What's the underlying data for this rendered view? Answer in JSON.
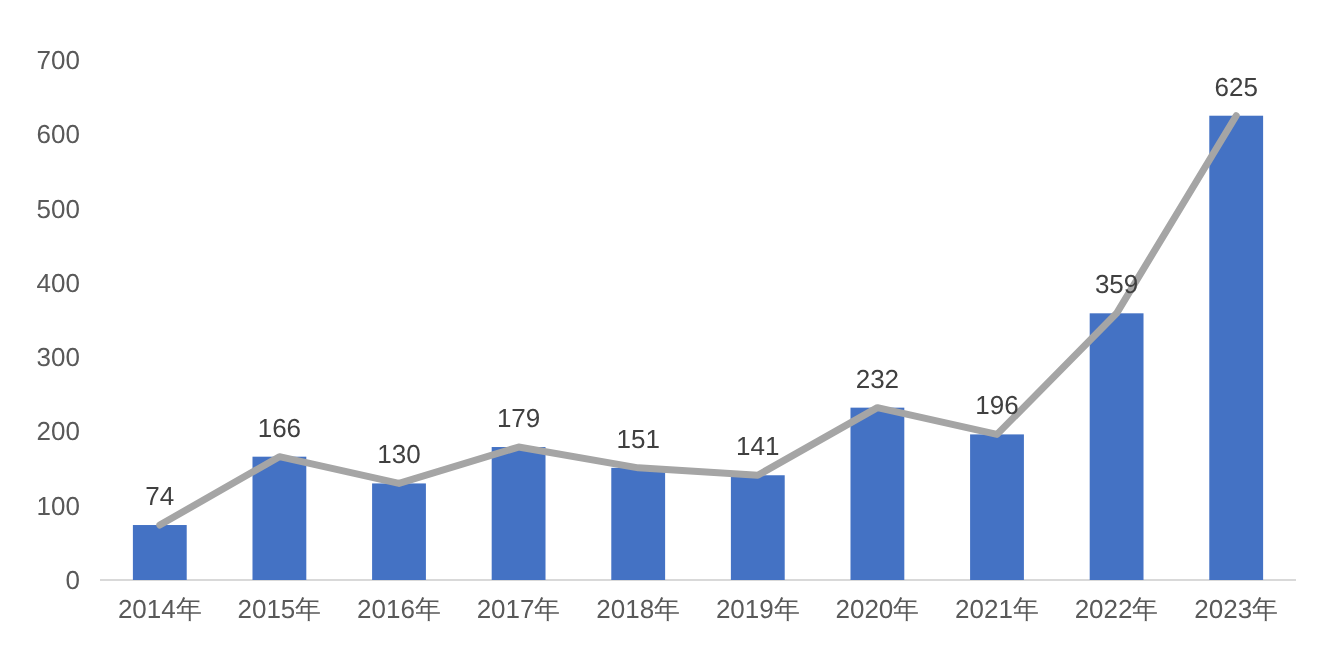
{
  "chart_data": {
    "type": "bar",
    "categories": [
      "2014年",
      "2015年",
      "2016年",
      "2017年",
      "2018年",
      "2019年",
      "2020年",
      "2021年",
      "2022年",
      "2023年"
    ],
    "series": [
      {
        "color": "#4472c4",
        "values": [
          74,
          166,
          130,
          179,
          151,
          141,
          232,
          196,
          359,
          625
        ]
      },
      {
        "type": "line",
        "color": "#a5a5a5",
        "values": [
          74,
          166,
          130,
          179,
          151,
          141,
          232,
          196,
          359,
          625
        ],
        "value_labels": [
          "74",
          "166",
          "130",
          "179",
          "151",
          "141",
          "232",
          "196",
          "359",
          "625"
        ]
      }
    ],
    "ylim": [
      0,
      700
    ],
    "yticks": [
      0,
      100,
      200,
      300,
      400,
      500,
      600,
      700
    ],
    "grid": false,
    "marker": "none",
    "line_style": "solid"
  }
}
